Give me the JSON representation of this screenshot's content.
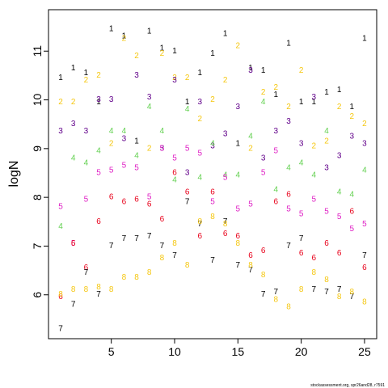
{
  "chart_data": {
    "type": "scatter",
    "title": "",
    "xlabel": "",
    "ylabel": "logN",
    "xlim": [
      0.04,
      25.96
    ],
    "ylim": [
      5.1,
      11.85
    ],
    "x_ticks": [
      5,
      10,
      15,
      20,
      25
    ],
    "y_ticks": [
      6,
      7,
      8,
      9,
      10,
      11
    ],
    "footer": "stockassessment.org, spr26and28, r7591",
    "colors": {
      "1": "#000000",
      "2": "#F5C710",
      "3": "#61008A",
      "4": "#61D04F",
      "5": "#DF1FC4",
      "6": "#E8001A",
      "7": "#000000",
      "8": "#F5C710"
    },
    "series": [
      {
        "label": "1",
        "x": [
          1,
          2,
          3,
          4,
          5,
          6,
          7,
          8,
          9,
          10,
          11,
          12,
          13,
          14,
          15,
          16,
          17,
          18,
          19,
          20,
          21,
          22,
          23,
          24,
          25
        ],
        "y": [
          10.45,
          10.65,
          10.55,
          9.95,
          11.45,
          11.3,
          9.15,
          11.4,
          11.05,
          11.0,
          9.95,
          10.55,
          10.95,
          11.35,
          9.1,
          10.65,
          10.6,
          10.1,
          11.15,
          9.95,
          9.95,
          10.15,
          10.2,
          9.85,
          11.25
        ]
      },
      {
        "label": "2",
        "x": [
          1,
          2,
          3,
          4,
          5,
          6,
          7,
          8,
          9,
          10,
          11,
          12,
          13,
          14,
          15,
          16,
          17,
          18,
          19,
          20,
          21,
          22,
          23,
          24,
          25
        ],
        "y": [
          9.95,
          9.95,
          10.4,
          10.5,
          9.1,
          11.25,
          10.9,
          9.0,
          10.95,
          10.45,
          10.45,
          9.6,
          10.0,
          10.4,
          11.1,
          9.0,
          10.15,
          10.25,
          9.85,
          10.6,
          9.05,
          9.15,
          9.85,
          9.65,
          9.5
        ]
      },
      {
        "label": "3",
        "x": [
          1,
          2,
          3,
          4,
          5,
          6,
          7,
          8,
          9,
          10,
          11,
          12,
          13,
          14,
          15,
          16,
          17,
          18,
          19,
          20,
          21,
          22,
          23,
          24,
          25
        ],
        "y": [
          9.35,
          9.5,
          9.35,
          10.0,
          10.0,
          9.2,
          10.5,
          10.05,
          9.0,
          10.4,
          8.5,
          9.95,
          9.05,
          9.3,
          9.85,
          10.6,
          8.8,
          9.35,
          9.55,
          9.1,
          10.05,
          8.6,
          8.85,
          9.25,
          9.1
        ]
      },
      {
        "label": "4",
        "x": [
          1,
          2,
          3,
          4,
          5,
          6,
          7,
          8,
          9,
          10,
          11,
          12,
          13,
          14,
          15,
          16,
          17,
          18,
          19,
          20,
          21,
          22,
          23,
          24,
          25
        ],
        "y": [
          7.4,
          8.8,
          8.7,
          8.95,
          9.35,
          9.35,
          8.85,
          9.85,
          9.35,
          8.35,
          9.8,
          8.4,
          9.1,
          8.45,
          8.45,
          9.25,
          9.95,
          8.15,
          8.6,
          8.7,
          8.45,
          9.35,
          8.1,
          8.05,
          8.55
        ]
      },
      {
        "label": "5",
        "x": [
          1,
          2,
          3,
          4,
          5,
          6,
          7,
          8,
          9,
          10,
          11,
          12,
          13,
          14,
          15,
          16,
          17,
          18,
          19,
          20,
          21,
          22,
          23,
          24,
          25
        ],
        "y": [
          7.8,
          7.05,
          7.95,
          8.5,
          8.55,
          8.65,
          8.6,
          8.0,
          9.0,
          8.8,
          9.0,
          8.9,
          7.9,
          8.4,
          7.75,
          7.85,
          8.5,
          8.95,
          7.75,
          7.65,
          7.95,
          7.7,
          7.6,
          7.35,
          7.45
        ]
      },
      {
        "label": "6",
        "x": [
          1,
          2,
          3,
          4,
          5,
          6,
          7,
          8,
          9,
          10,
          11,
          12,
          13,
          14,
          15,
          16,
          17,
          18,
          19,
          20,
          21,
          22,
          23,
          24,
          25
        ],
        "y": [
          5.95,
          7.05,
          6.55,
          7.5,
          8.0,
          7.9,
          7.95,
          7.85,
          7.55,
          8.5,
          8.1,
          7.2,
          8.1,
          7.25,
          7.2,
          6.8,
          6.9,
          7.9,
          8.05,
          6.85,
          6.75,
          7.05,
          6.85,
          7.7,
          6.55
        ]
      },
      {
        "label": "7",
        "x": [
          1,
          2,
          3,
          4,
          5,
          6,
          7,
          8,
          9,
          10,
          11,
          12,
          13,
          14,
          15,
          16,
          17,
          18,
          19,
          20,
          21,
          22,
          23,
          24,
          25
        ],
        "y": [
          5.3,
          5.8,
          6.45,
          6.0,
          7.0,
          7.15,
          7.15,
          7.2,
          7.0,
          6.8,
          7.9,
          7.45,
          6.7,
          7.5,
          6.6,
          6.5,
          6.0,
          6.05,
          7.0,
          7.15,
          6.1,
          6.05,
          6.1,
          5.95,
          6.8
        ]
      },
      {
        "label": "8",
        "x": [
          1,
          2,
          3,
          4,
          5,
          6,
          7,
          8,
          9,
          10,
          11,
          12,
          13,
          14,
          15,
          16,
          17,
          18,
          19,
          20,
          21,
          22,
          23,
          24,
          25
        ],
        "y": [
          6.0,
          6.1,
          6.1,
          6.15,
          6.1,
          6.35,
          6.35,
          6.45,
          6.75,
          7.05,
          6.6,
          7.5,
          7.6,
          7.45,
          7.05,
          6.6,
          6.4,
          5.9,
          5.75,
          6.1,
          6.45,
          6.3,
          5.95,
          6.05,
          5.85
        ]
      }
    ]
  }
}
